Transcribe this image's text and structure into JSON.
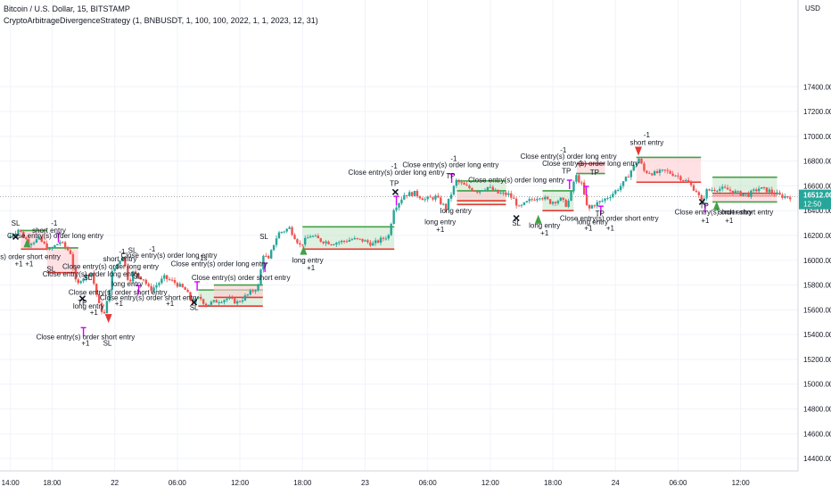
{
  "header": {
    "symbol_line": "Bitcoin / U.S. Dollar, 15, BITSTAMP",
    "strategy_line": "CryptoArbitrageDivergenceStrategy (1, BNBUSDT, 1, 100, 100, 2022, 1, 1, 2023, 12, 31)"
  },
  "price_axis": {
    "currency": "USD",
    "last_price": "16512.00",
    "countdown": "12:50"
  },
  "colors": {
    "up": "#26a69a",
    "down": "#ef5350",
    "tp_sl_green": "#43a047",
    "tp_sl_red": "#e53935",
    "zone_green": "#c8e6c9",
    "zone_red": "#ffcdd2",
    "marker_magenta": "#d500f9",
    "last_price_bg": "#26a69a"
  },
  "chart_data": {
    "type": "candlestick",
    "title": "",
    "xlabel": "",
    "ylabel": "",
    "ylim": [
      14300,
      18100
    ],
    "y_ticks": [
      14400,
      14600,
      14800,
      15000,
      15200,
      15400,
      15600,
      15800,
      16000,
      16200,
      16400,
      16600,
      16800,
      17000,
      17200,
      17400
    ],
    "x_ticks": [
      {
        "label": "14:00",
        "t": 0
      },
      {
        "label": "18:00",
        "t": 4
      },
      {
        "label": "22",
        "t": 10
      },
      {
        "label": "06:00",
        "t": 16
      },
      {
        "label": "12:00",
        "t": 22
      },
      {
        "label": "18:00",
        "t": 28
      },
      {
        "label": "23",
        "t": 34
      },
      {
        "label": "06:00",
        "t": 40
      },
      {
        "label": "12:00",
        "t": 46
      },
      {
        "label": "18:00",
        "t": 52
      },
      {
        "label": "24",
        "t": 58
      },
      {
        "label": "06:00",
        "t": 64
      },
      {
        "label": "12:00",
        "t": 70
      }
    ],
    "x_range": [
      -1,
      75.5
    ],
    "price_path": [
      [
        0,
        16180
      ],
      [
        1,
        16250
      ],
      [
        2,
        16140
      ],
      [
        3,
        16170
      ],
      [
        4,
        16080
      ],
      [
        5,
        16150
      ],
      [
        6,
        16060
      ],
      [
        6.6,
        15780
      ],
      [
        7,
        15850
      ],
      [
        8,
        15900
      ],
      [
        8.8,
        15620
      ],
      [
        9.3,
        15560
      ],
      [
        10,
        15900
      ],
      [
        11,
        16040
      ],
      [
        11.6,
        15820
      ],
      [
        12,
        15900
      ],
      [
        13,
        15850
      ],
      [
        13.6,
        15760
      ],
      [
        14,
        15780
      ],
      [
        15,
        15860
      ],
      [
        16,
        15820
      ],
      [
        17,
        15760
      ],
      [
        17.7,
        15660
      ],
      [
        18.4,
        15700
      ],
      [
        19,
        15640
      ],
      [
        20,
        15670
      ],
      [
        21,
        15690
      ],
      [
        22,
        15660
      ],
      [
        23,
        15720
      ],
      [
        24,
        15790
      ],
      [
        24.5,
        16050
      ],
      [
        25,
        16000
      ],
      [
        25.6,
        16160
      ],
      [
        26,
        16220
      ],
      [
        27,
        16260
      ],
      [
        28,
        16120
      ],
      [
        29,
        16200
      ],
      [
        30,
        16160
      ],
      [
        31,
        16140
      ],
      [
        32,
        16150
      ],
      [
        33,
        16170
      ],
      [
        34,
        16160
      ],
      [
        35,
        16130
      ],
      [
        36.5,
        16200
      ],
      [
        37,
        16420
      ],
      [
        37.5,
        16470
      ],
      [
        38,
        16530
      ],
      [
        39,
        16540
      ],
      [
        40,
        16490
      ],
      [
        41,
        16510
      ],
      [
        42,
        16420
      ],
      [
        42.6,
        16560
      ],
      [
        43,
        16640
      ],
      [
        44,
        16590
      ],
      [
        45,
        16560
      ],
      [
        46,
        16590
      ],
      [
        47,
        16540
      ],
      [
        48,
        16530
      ],
      [
        48.6,
        16480
      ],
      [
        49,
        16420
      ],
      [
        50,
        16480
      ],
      [
        51,
        16520
      ],
      [
        52,
        16470
      ],
      [
        53,
        16490
      ],
      [
        53.6,
        16440
      ],
      [
        54,
        16540
      ],
      [
        54.4,
        16690
      ],
      [
        55,
        16610
      ],
      [
        55.6,
        16400
      ],
      [
        56,
        16440
      ],
      [
        57,
        16480
      ],
      [
        58,
        16540
      ],
      [
        59,
        16620
      ],
      [
        60,
        16760
      ],
      [
        60.5,
        16820
      ],
      [
        61,
        16720
      ],
      [
        62,
        16700
      ],
      [
        63,
        16720
      ],
      [
        64,
        16690
      ],
      [
        65,
        16640
      ],
      [
        66,
        16560
      ],
      [
        66.5,
        16470
      ],
      [
        67,
        16560
      ],
      [
        68,
        16580
      ],
      [
        69,
        16570
      ],
      [
        70,
        16540
      ],
      [
        71,
        16530
      ],
      [
        72,
        16580
      ],
      [
        73,
        16560
      ],
      [
        74,
        16520
      ],
      [
        74.8,
        16512
      ]
    ],
    "zones": [
      {
        "t0": 1,
        "t1": 3.5,
        "entry": 16240,
        "target": 16090,
        "kind": "short"
      },
      {
        "t0": 3.5,
        "t1": 6.5,
        "entry": 16100,
        "target": 15900,
        "kind": "short"
      },
      {
        "t0": 18,
        "t1": 24.2,
        "entry": 15630,
        "target": 15760,
        "kind": "long"
      },
      {
        "t0": 19.5,
        "t1": 24.2,
        "entry": 15800,
        "target": 15700,
        "kind": "short"
      },
      {
        "t0": 28,
        "t1": 36.8,
        "entry": 16090,
        "target": 16270,
        "kind": "long"
      },
      {
        "t0": 42.8,
        "t1": 47.5,
        "entry": 16450,
        "target": 16640,
        "kind": "long"
      },
      {
        "t0": 42.8,
        "t1": 47.5,
        "entry": 16560,
        "target": 16480,
        "kind": "short"
      },
      {
        "t0": 51,
        "t1": 54,
        "entry": 16400,
        "target": 16560,
        "kind": "long"
      },
      {
        "t0": 54.3,
        "t1": 57,
        "entry": 16700,
        "target": 16780,
        "kind": "short"
      },
      {
        "t0": 60,
        "t1": 66.2,
        "entry": 16830,
        "target": 16630,
        "kind": "short"
      },
      {
        "t0": 67.3,
        "t1": 73.5,
        "entry": 16520,
        "target": 16670,
        "kind": "long"
      },
      {
        "t0": 67.3,
        "t1": 73.5,
        "entry": 16470,
        "target": 16540,
        "kind": "short"
      }
    ],
    "markers": [
      {
        "t": 0.5,
        "price": 16190,
        "shape": "x",
        "color": "#131722"
      },
      {
        "t": 6.9,
        "price": 15690,
        "shape": "x",
        "color": "#131722"
      },
      {
        "t": 17.6,
        "price": 15660,
        "shape": "x",
        "color": "#131722"
      },
      {
        "t": 36.9,
        "price": 16550,
        "shape": "x",
        "color": "#131722"
      },
      {
        "t": 48.5,
        "price": 16340,
        "shape": "x",
        "color": "#131722"
      },
      {
        "t": 66.3,
        "price": 16470,
        "shape": "x",
        "color": "#131722"
      },
      {
        "t": 1.6,
        "price": 16140,
        "shape": "tri-up",
        "color": "#43a047"
      },
      {
        "t": 28.1,
        "price": 16080,
        "shape": "tri-up",
        "color": "#43a047"
      },
      {
        "t": 50.6,
        "price": 16330,
        "shape": "tri-up",
        "color": "#43a047"
      },
      {
        "t": 67.7,
        "price": 16440,
        "shape": "tri-up",
        "color": "#43a047"
      },
      {
        "t": 60.2,
        "price": 16880,
        "shape": "tri-down",
        "color": "#e53935"
      },
      {
        "t": 9.4,
        "price": 15530,
        "shape": "tri-down",
        "color": "#e53935"
      },
      {
        "t": 4.6,
        "price": 16180,
        "shape": "flag",
        "color": "#d500f9"
      },
      {
        "t": 7.0,
        "price": 15420,
        "shape": "flag",
        "color": "#d500f9"
      },
      {
        "t": 12.3,
        "price": 15760,
        "shape": "flag",
        "color": "#d500f9"
      },
      {
        "t": 17.9,
        "price": 15790,
        "shape": "flag",
        "color": "#d500f9"
      },
      {
        "t": 24.4,
        "price": 15940,
        "shape": "flag",
        "color": "#d500f9"
      },
      {
        "t": 37.0,
        "price": 16480,
        "shape": "flag",
        "color": "#d500f9"
      },
      {
        "t": 42.3,
        "price": 16660,
        "shape": "flag",
        "color": "#d500f9"
      },
      {
        "t": 53.6,
        "price": 16610,
        "shape": "flag",
        "color": "#d500f9"
      },
      {
        "t": 55.2,
        "price": 16560,
        "shape": "flag",
        "color": "#d500f9"
      },
      {
        "t": 56.6,
        "price": 16400,
        "shape": "flag",
        "color": "#d500f9"
      },
      {
        "t": 66.6,
        "price": 16420,
        "shape": "flag",
        "color": "#d500f9"
      }
    ],
    "annotations": [
      {
        "text": "SL",
        "t": 0.5,
        "price": 16280
      },
      {
        "text": "-1",
        "t": 4.2,
        "price": 16280
      },
      {
        "text": "short entry",
        "t": 3.7,
        "price": 16220
      },
      {
        "text": "Close entry(s) order long entry",
        "t": 4.3,
        "price": 16180
      },
      {
        "text": "+1",
        "t": 0.8,
        "price": 15950
      },
      {
        "text": "+1",
        "t": 1.8,
        "price": 15950
      },
      {
        "text": "(s) order short entry",
        "t": 1.8,
        "price": 16010
      },
      {
        "text": "SL",
        "t": 3.9,
        "price": 15910
      },
      {
        "text": "SL",
        "t": 11.7,
        "price": 16060
      },
      {
        "text": "-1",
        "t": 13.6,
        "price": 16070
      },
      {
        "text": "Close entry(s) order long entry",
        "t": 15.2,
        "price": 16020
      },
      {
        "text": "-1s",
        "t": 18.4,
        "price": 16000
      },
      {
        "text": "short entry",
        "t": 10.5,
        "price": 15990
      },
      {
        "text": "-1",
        "t": 10.7,
        "price": 16050
      },
      {
        "text": "Close entry(s) order long entry",
        "t": 20.0,
        "price": 15950
      },
      {
        "text": "Close entry(s) order long entry",
        "t": 9.6,
        "price": 15930
      },
      {
        "text": "Close entry(s) order long entry",
        "t": 7.7,
        "price": 15870
      },
      {
        "text": "SL",
        "t": 12.2,
        "price": 15850
      },
      {
        "text": "long entry",
        "t": 11.2,
        "price": 15790
      },
      {
        "text": "SL",
        "t": 7.4,
        "price": 15840
      },
      {
        "text": "Close entry(s) order short entry",
        "t": 10.3,
        "price": 15720
      },
      {
        "text": "Close entry(s) order short entry",
        "t": 13.3,
        "price": 15680
      },
      {
        "text": "+1",
        "t": 10.4,
        "price": 15630
      },
      {
        "text": "+1",
        "t": 15.3,
        "price": 15630
      },
      {
        "text": "long entry",
        "t": 7.5,
        "price": 15610
      },
      {
        "text": "+1",
        "t": 8.0,
        "price": 15560
      },
      {
        "text": "TP",
        "t": 6.9,
        "price": 15640
      },
      {
        "text": "SL",
        "t": 17.6,
        "price": 15600
      },
      {
        "text": "Close entry(s) order short entry",
        "t": 22.1,
        "price": 15840
      },
      {
        "text": "Close entry(s) order short entry",
        "t": 7.2,
        "price": 15360
      },
      {
        "text": "+1",
        "t": 7.2,
        "price": 15310
      },
      {
        "text": "SL",
        "t": 9.3,
        "price": 15310
      },
      {
        "text": "SL",
        "t": 24.3,
        "price": 16170
      },
      {
        "text": "long entry",
        "t": 28.5,
        "price": 15980
      },
      {
        "text": "+1",
        "t": 28.8,
        "price": 15920
      },
      {
        "text": "-1",
        "t": 36.8,
        "price": 16740
      },
      {
        "text": "Close entry(s) order long entry",
        "t": 37.0,
        "price": 16690
      },
      {
        "text": "TP",
        "t": 36.8,
        "price": 16600
      },
      {
        "text": "-1",
        "t": 42.5,
        "price": 16800
      },
      {
        "text": "Close entry(s) order long entry",
        "t": 42.2,
        "price": 16750
      },
      {
        "text": "TP",
        "t": 42.2,
        "price": 16660
      },
      {
        "text": "long entry",
        "t": 42.7,
        "price": 16380
      },
      {
        "text": "long entry",
        "t": 41.2,
        "price": 16290
      },
      {
        "text": "+1",
        "t": 41.2,
        "price": 16230
      },
      {
        "text": "Close entry(s) order long entry",
        "t": 48.5,
        "price": 16630
      },
      {
        "text": "SL",
        "t": 48.5,
        "price": 16280
      },
      {
        "text": "-1",
        "t": 53.0,
        "price": 16870
      },
      {
        "text": "Close entry(s) order long entry",
        "t": 53.5,
        "price": 16820
      },
      {
        "text": "TP",
        "t": 53.3,
        "price": 16700
      },
      {
        "text": "-1",
        "t": 54.6,
        "price": 16760
      },
      {
        "text": "Close entry(s) order long entry",
        "t": 55.6,
        "price": 16760
      },
      {
        "text": "TP",
        "t": 56.0,
        "price": 16690
      },
      {
        "text": "long entry",
        "t": 51.2,
        "price": 16260
      },
      {
        "text": "+1",
        "t": 51.2,
        "price": 16200
      },
      {
        "text": "Close entry(s) order short entry",
        "t": 57.4,
        "price": 16320
      },
      {
        "text": "long entry",
        "t": 55.8,
        "price": 16290
      },
      {
        "text": "+1",
        "t": 55.4,
        "price": 16240
      },
      {
        "text": "+1",
        "t": 57.5,
        "price": 16240
      },
      {
        "text": "TP",
        "t": 56.5,
        "price": 16360
      },
      {
        "text": "-1",
        "t": 61.0,
        "price": 16990
      },
      {
        "text": "short entry",
        "t": 61.0,
        "price": 16930
      },
      {
        "text": "Close entry(s) order short entry",
        "t": 68.4,
        "price": 16370
      },
      {
        "text": "TP",
        "t": 66.5,
        "price": 16420
      },
      {
        "text": "+1",
        "t": 66.6,
        "price": 16300
      },
      {
        "text": "+1",
        "t": 68.9,
        "price": 16300
      },
      {
        "text": "short entry",
        "t": 69.5,
        "price": 16370
      }
    ]
  }
}
